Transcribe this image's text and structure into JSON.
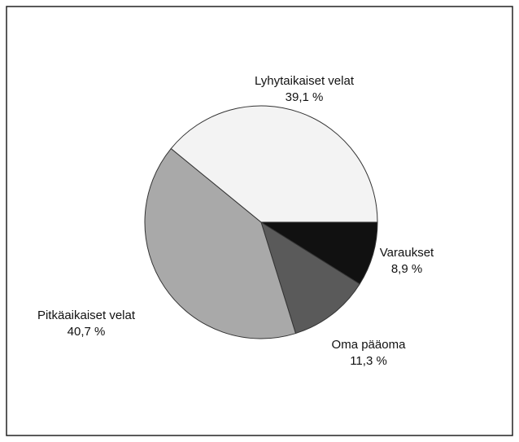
{
  "chart_data": {
    "type": "pie",
    "categories": [
      "Varaukset",
      "Oma pääoma",
      "Pitkäaikaiset velat",
      "Lyhytaikaiset velat"
    ],
    "values": [
      8.9,
      11.3,
      40.7,
      39.1
    ],
    "value_labels": [
      "8,9 %",
      "11,3 %",
      "40,7 %",
      "39,1 %"
    ],
    "colors": [
      "#111111",
      "#5a5a5a",
      "#a9a9a9",
      "#f3f3f3"
    ]
  }
}
